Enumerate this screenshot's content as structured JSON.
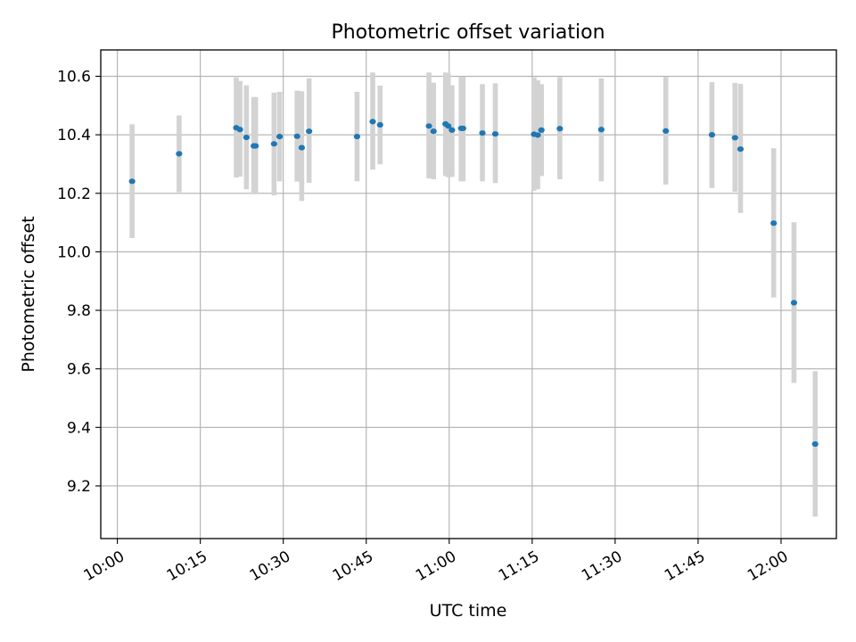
{
  "chart_data": {
    "type": "scatter",
    "title": "Photometric offset variation",
    "xlabel": "UTC time",
    "ylabel": "Photometric offset",
    "x_type": "time",
    "xlim": [
      "09:57",
      "12:10"
    ],
    "ylim": [
      9.02,
      10.69
    ],
    "x_ticks": [
      "10:00",
      "10:15",
      "10:30",
      "10:45",
      "11:00",
      "11:15",
      "11:30",
      "11:45",
      "12:00"
    ],
    "y_ticks": [
      9.2,
      9.4,
      9.6,
      9.8,
      10.0,
      10.2,
      10.4,
      10.6
    ],
    "y_tick_labels": [
      "9.2",
      "9.4",
      "9.6",
      "9.8",
      "10.0",
      "10.2",
      "10.4",
      "10.6"
    ],
    "grid": true,
    "legend": "none",
    "colors": {
      "point": "#1f77b4",
      "errorbar": "#d3d3d3",
      "grid": "#b0b0b0",
      "axes": "#000000"
    },
    "points": [
      {
        "time": "10:02:40",
        "y": 10.241,
        "ylow": 10.047,
        "yhigh": 10.436
      },
      {
        "time": "10:11:10",
        "y": 10.335,
        "ylow": 10.204,
        "yhigh": 10.466
      },
      {
        "time": "10:21:30",
        "y": 10.424,
        "ylow": 10.254,
        "yhigh": 10.596
      },
      {
        "time": "10:22:10",
        "y": 10.418,
        "ylow": 10.257,
        "yhigh": 10.584
      },
      {
        "time": "10:23:20",
        "y": 10.391,
        "ylow": 10.214,
        "yhigh": 10.569
      },
      {
        "time": "10:24:40",
        "y": 10.362,
        "ylow": 10.197,
        "yhigh": 10.529
      },
      {
        "time": "10:25:00",
        "y": 10.362,
        "ylow": 10.197,
        "yhigh": 10.529
      },
      {
        "time": "10:28:20",
        "y": 10.369,
        "ylow": 10.193,
        "yhigh": 10.544
      },
      {
        "time": "10:29:20",
        "y": 10.394,
        "ylow": 10.241,
        "yhigh": 10.547
      },
      {
        "time": "10:32:30",
        "y": 10.395,
        "ylow": 10.24,
        "yhigh": 10.551
      },
      {
        "time": "10:33:20",
        "y": 10.356,
        "ylow": 10.174,
        "yhigh": 10.549
      },
      {
        "time": "10:34:40",
        "y": 10.412,
        "ylow": 10.236,
        "yhigh": 10.593
      },
      {
        "time": "10:43:20",
        "y": 10.394,
        "ylow": 10.241,
        "yhigh": 10.547
      },
      {
        "time": "10:46:10",
        "y": 10.445,
        "ylow": 10.281,
        "yhigh": 10.613
      },
      {
        "time": "10:47:30",
        "y": 10.434,
        "ylow": 10.299,
        "yhigh": 10.568
      },
      {
        "time": "10:56:20",
        "y": 10.43,
        "ylow": 10.251,
        "yhigh": 10.613
      },
      {
        "time": "10:57:10",
        "y": 10.412,
        "ylow": 10.248,
        "yhigh": 10.578
      },
      {
        "time": "10:59:20",
        "y": 10.437,
        "ylow": 10.259,
        "yhigh": 10.613
      },
      {
        "time": "10:59:50",
        "y": 10.43,
        "ylow": 10.255,
        "yhigh": 10.61
      },
      {
        "time": "11:00:30",
        "y": 10.416,
        "ylow": 10.256,
        "yhigh": 10.569
      },
      {
        "time": "11:02:10",
        "y": 10.422,
        "ylow": 10.241,
        "yhigh": 10.599
      },
      {
        "time": "11:02:30",
        "y": 10.422,
        "ylow": 10.241,
        "yhigh": 10.599
      },
      {
        "time": "11:06:00",
        "y": 10.406,
        "ylow": 10.241,
        "yhigh": 10.573
      },
      {
        "time": "11:08:20",
        "y": 10.403,
        "ylow": 10.235,
        "yhigh": 10.576
      },
      {
        "time": "11:15:20",
        "y": 10.402,
        "ylow": 10.209,
        "yhigh": 10.596
      },
      {
        "time": "11:16:00",
        "y": 10.399,
        "ylow": 10.214,
        "yhigh": 10.586
      },
      {
        "time": "11:16:40",
        "y": 10.416,
        "ylow": 10.259,
        "yhigh": 10.573
      },
      {
        "time": "11:20:00",
        "y": 10.421,
        "ylow": 10.248,
        "yhigh": 10.597
      },
      {
        "time": "11:27:30",
        "y": 10.418,
        "ylow": 10.241,
        "yhigh": 10.593
      },
      {
        "time": "11:39:10",
        "y": 10.413,
        "ylow": 10.23,
        "yhigh": 10.598
      },
      {
        "time": "11:47:30",
        "y": 10.4,
        "ylow": 10.218,
        "yhigh": 10.58
      },
      {
        "time": "11:51:40",
        "y": 10.39,
        "ylow": 10.205,
        "yhigh": 10.577
      },
      {
        "time": "11:52:40",
        "y": 10.351,
        "ylow": 10.133,
        "yhigh": 10.574
      },
      {
        "time": "11:58:40",
        "y": 10.098,
        "ylow": 9.844,
        "yhigh": 10.354
      },
      {
        "time": "12:02:20",
        "y": 9.826,
        "ylow": 9.552,
        "yhigh": 10.101
      },
      {
        "time": "12:06:10",
        "y": 9.343,
        "ylow": 9.095,
        "yhigh": 9.592
      }
    ]
  }
}
